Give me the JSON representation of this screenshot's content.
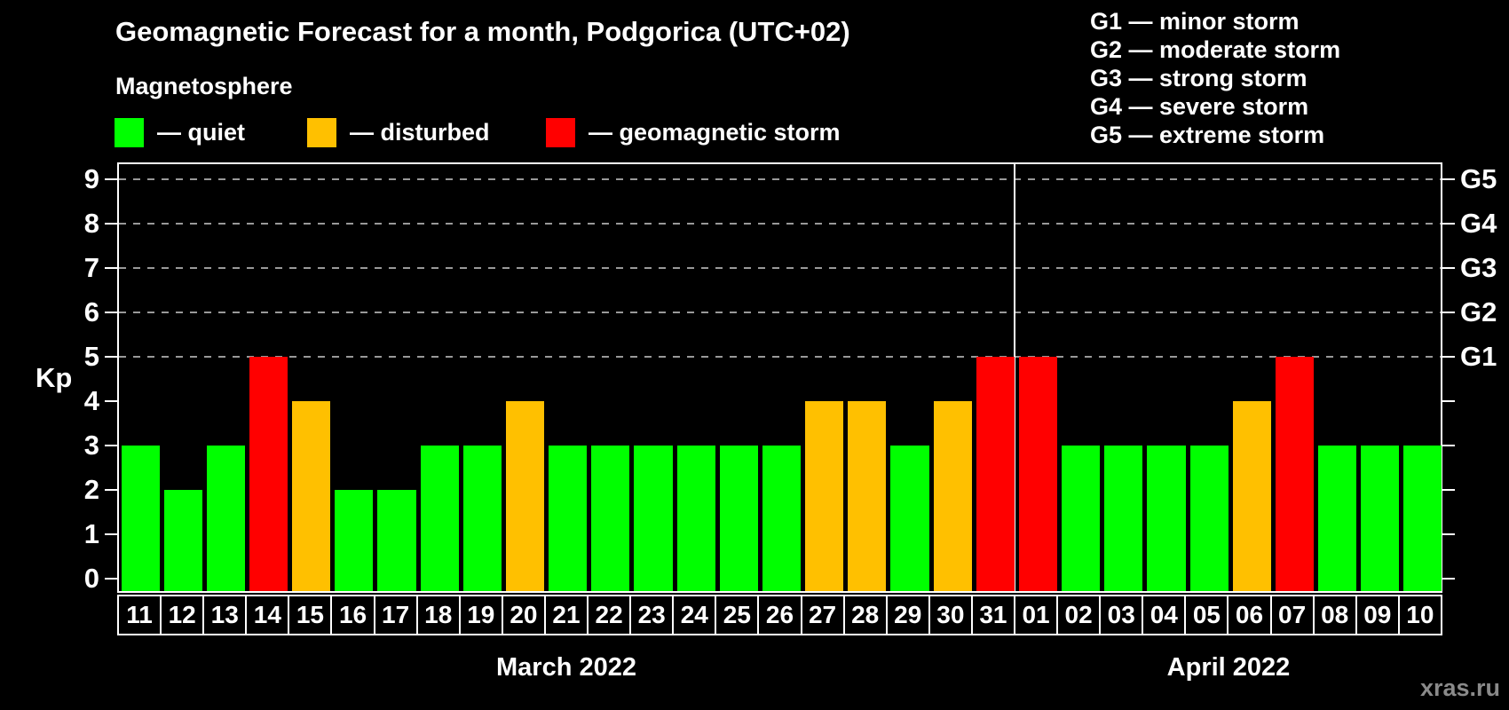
{
  "title": "Geomagnetic Forecast for a month, Podgorica (UTC+02)",
  "subtitle": "Magnetosphere",
  "legend": [
    {
      "label": "— quiet",
      "level": "quiet"
    },
    {
      "label": "— disturbed",
      "level": "disturbed"
    },
    {
      "label": "— geomagnetic storm",
      "level": "storm"
    }
  ],
  "g_legend": [
    "G1 — minor storm",
    "G2 — moderate storm",
    "G3 — strong storm",
    "G4 — severe storm",
    "G5 — extreme storm"
  ],
  "watermark": "xras.ru",
  "colors": {
    "quiet": "#00ff00",
    "disturbed": "#ffc000",
    "storm": "#ff0000",
    "grid": "#999999",
    "frame": "#ffffff",
    "watermark": "#8a8a8a",
    "background": "#000000"
  },
  "axis": {
    "y_label": "Kp",
    "y_ticks": [
      0,
      1,
      2,
      3,
      4,
      5,
      6,
      7,
      8,
      9
    ],
    "grid_levels": [
      5,
      6,
      7,
      8,
      9
    ],
    "right_labels": [
      {
        "kp": 5,
        "label": "G1"
      },
      {
        "kp": 6,
        "label": "G2"
      },
      {
        "kp": 7,
        "label": "G3"
      },
      {
        "kp": 8,
        "label": "G4"
      },
      {
        "kp": 9,
        "label": "G5"
      }
    ]
  },
  "months": [
    {
      "label": "March 2022",
      "days": 21
    },
    {
      "label": "April 2022",
      "days": 10
    }
  ],
  "chart_data": {
    "type": "bar",
    "title": "Geomagnetic Forecast for a month, Podgorica (UTC+02)",
    "xlabel": "",
    "ylabel": "Kp",
    "ylim": [
      0,
      9.4
    ],
    "grid": "dashed horizontal at Kp 5..9",
    "legend_position": "top-left",
    "days": [
      {
        "date": "11",
        "month": "March 2022",
        "value": 3,
        "level": "quiet"
      },
      {
        "date": "12",
        "month": "March 2022",
        "value": 2,
        "level": "quiet"
      },
      {
        "date": "13",
        "month": "March 2022",
        "value": 3,
        "level": "quiet"
      },
      {
        "date": "14",
        "month": "March 2022",
        "value": 5,
        "level": "storm"
      },
      {
        "date": "15",
        "month": "March 2022",
        "value": 4,
        "level": "disturbed"
      },
      {
        "date": "16",
        "month": "March 2022",
        "value": 2,
        "level": "quiet"
      },
      {
        "date": "17",
        "month": "March 2022",
        "value": 2,
        "level": "quiet"
      },
      {
        "date": "18",
        "month": "March 2022",
        "value": 3,
        "level": "quiet"
      },
      {
        "date": "19",
        "month": "March 2022",
        "value": 3,
        "level": "quiet"
      },
      {
        "date": "20",
        "month": "March 2022",
        "value": 4,
        "level": "disturbed"
      },
      {
        "date": "21",
        "month": "March 2022",
        "value": 3,
        "level": "quiet"
      },
      {
        "date": "22",
        "month": "March 2022",
        "value": 3,
        "level": "quiet"
      },
      {
        "date": "23",
        "month": "March 2022",
        "value": 3,
        "level": "quiet"
      },
      {
        "date": "24",
        "month": "March 2022",
        "value": 3,
        "level": "quiet"
      },
      {
        "date": "25",
        "month": "March 2022",
        "value": 3,
        "level": "quiet"
      },
      {
        "date": "26",
        "month": "March 2022",
        "value": 3,
        "level": "quiet"
      },
      {
        "date": "27",
        "month": "March 2022",
        "value": 4,
        "level": "disturbed"
      },
      {
        "date": "28",
        "month": "March 2022",
        "value": 4,
        "level": "disturbed"
      },
      {
        "date": "29",
        "month": "March 2022",
        "value": 3,
        "level": "quiet"
      },
      {
        "date": "30",
        "month": "March 2022",
        "value": 4,
        "level": "disturbed"
      },
      {
        "date": "31",
        "month": "March 2022",
        "value": 5,
        "level": "storm"
      },
      {
        "date": "01",
        "month": "April 2022",
        "value": 5,
        "level": "storm"
      },
      {
        "date": "02",
        "month": "April 2022",
        "value": 3,
        "level": "quiet"
      },
      {
        "date": "03",
        "month": "April 2022",
        "value": 3,
        "level": "quiet"
      },
      {
        "date": "04",
        "month": "April 2022",
        "value": 3,
        "level": "quiet"
      },
      {
        "date": "05",
        "month": "April 2022",
        "value": 3,
        "level": "quiet"
      },
      {
        "date": "06",
        "month": "April 2022",
        "value": 4,
        "level": "disturbed"
      },
      {
        "date": "07",
        "month": "April 2022",
        "value": 5,
        "level": "storm"
      },
      {
        "date": "08",
        "month": "April 2022",
        "value": 3,
        "level": "quiet"
      },
      {
        "date": "09",
        "month": "April 2022",
        "value": 3,
        "level": "quiet"
      },
      {
        "date": "10",
        "month": "April 2022",
        "value": 3,
        "level": "quiet"
      }
    ]
  }
}
